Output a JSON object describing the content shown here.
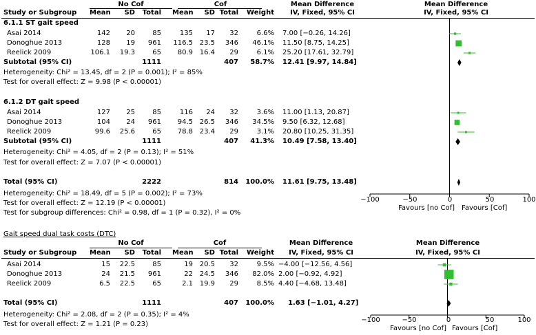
{
  "top": {
    "group_no_cof": "No Cof",
    "group_cof": "Cof",
    "headers": [
      "Study or Subgroup",
      "Mean",
      "SD",
      "Total",
      "Mean",
      "SD",
      "Total",
      "Weight",
      "Mean Difference",
      "Mean Difference"
    ],
    "sub_headers": [
      "IV, Fixed, 95% CI",
      "IV, Fixed, 95% CI"
    ],
    "subgroups": [
      {
        "title": "6.1.1 ST gait speed",
        "rows": [
          {
            "study": "Asai 2014",
            "m1": "142",
            "sd1": "20",
            "n1": "85",
            "m2": "135",
            "sd2": "17",
            "n2": "32",
            "w": "6.6%",
            "ci": "7.00 [−0.26, 14.26]"
          },
          {
            "study": "Donoghue 2013",
            "m1": "128",
            "sd1": "19",
            "n1": "961",
            "m2": "116.5",
            "sd2": "23.5",
            "n2": "346",
            "w": "46.1%",
            "ci": "11.50 [8.75, 14.25]"
          },
          {
            "study": "Reelick 2009",
            "m1": "106.1",
            "sd1": "19.3",
            "n1": "65",
            "m2": "80.9",
            "sd2": "16.4",
            "n2": "29",
            "w": "6.1%",
            "ci": "25.20 [17.61, 32.79]"
          }
        ],
        "subtotal": {
          "label": "Subtotal (95% CI)",
          "n1": "1111",
          "n2": "407",
          "w": "58.7%",
          "ci": "12.41 [9.97, 14.84]"
        },
        "het": "Heterogeneity: Chi² = 13.45, df = 2 (P = 0.001); I² = 85%",
        "effect": "Test for overall effect: Z = 9.98 (P < 0.00001)"
      },
      {
        "title": "6.1.2 DT gait speed",
        "rows": [
          {
            "study": "Asai 2014",
            "m1": "127",
            "sd1": "25",
            "n1": "85",
            "m2": "116",
            "sd2": "24",
            "n2": "32",
            "w": "3.6%",
            "ci": "11.00 [1.13, 20.87]"
          },
          {
            "study": "Donoghue 2013",
            "m1": "104",
            "sd1": "24",
            "n1": "961",
            "m2": "94.5",
            "sd2": "26.5",
            "n2": "346",
            "w": "34.5%",
            "ci": "9.50 [6.32, 12.68]"
          },
          {
            "study": "Reelick 2009",
            "m1": "99.6",
            "sd1": "25.6",
            "n1": "65",
            "m2": "78.8",
            "sd2": "23.4",
            "n2": "29",
            "w": "3.1%",
            "ci": "20.80 [10.25, 31.35]"
          }
        ],
        "subtotal": {
          "label": "Subtotal (95% CI)",
          "n1": "1111",
          "n2": "407",
          "w": "41.3%",
          "ci": "10.49 [7.58, 13.40]"
        },
        "het": "Heterogeneity: Chi² = 4.05, df = 2 (P = 0.13); I² = 51%",
        "effect": "Test for overall effect: Z = 7.07 (P < 0.00001)"
      }
    ],
    "total": {
      "label": "Total (95% CI)",
      "n1": "2222",
      "n2": "814",
      "w": "100.0%",
      "ci": "11.61 [9.75, 13.48]"
    },
    "total_het": "Heterogeneity: Chi² = 18.49, df = 5 (P = 0.002); I² = 73%",
    "total_effect": "Test for overall effect: Z = 12.19 (P < 0.00001)",
    "subgroup_diff": "Test for subgroup differences: Chi² = 0.98, df = 1 (P = 0.32), I² = 0%",
    "axis": {
      "ticks": [
        "−100",
        "−50",
        "0",
        "50",
        "100"
      ],
      "left_label": "Favours [no Cof]",
      "right_label": "Favours [Cof]"
    }
  },
  "bottom": {
    "title": "Gait speed dual task costs (DTC)",
    "group_no_cof": "No Cof",
    "group_cof": "Cof",
    "headers": [
      "Study or Subgroup",
      "Mean",
      "SD",
      "Total",
      "Mean",
      "SD",
      "Total",
      "Weight",
      "Mean Difference",
      "Mean Difference"
    ],
    "sub_headers": [
      "IV, Fixed, 95% CI",
      "IV, Fixed, 95% CI"
    ],
    "rows": [
      {
        "study": "Asai 2014",
        "m1": "15",
        "sd1": "22.5",
        "n1": "85",
        "m2": "19",
        "sd2": "20.5",
        "n2": "32",
        "w": "9.5%",
        "ci": "−4.00 [−12.56, 4.56]"
      },
      {
        "study": "Donoghue 2013",
        "m1": "24",
        "sd1": "21.5",
        "n1": "961",
        "m2": "22",
        "sd2": "24.5",
        "n2": "346",
        "w": "82.0%",
        "ci": "2.00 [−0.92, 4.92]"
      },
      {
        "study": "Reelick 2009",
        "m1": "6.5",
        "sd1": "22.5",
        "n1": "65",
        "m2": "2.1",
        "sd2": "19.9",
        "n2": "29",
        "w": "8.5%",
        "ci": "4.40 [−4.68, 13.48]"
      }
    ],
    "total": {
      "label": "Total (95% CI)",
      "n1": "1111",
      "n2": "407",
      "w": "100.0%",
      "ci": "1.63 [−1.01, 4.27]"
    },
    "het": "Heterogeneity: Chi² = 2.08, df = 2 (P = 0.35); I² = 4%",
    "effect": "Test for overall effect: Z = 1.21 (P = 0.23)",
    "axis": {
      "ticks": [
        "−100",
        "−50",
        "0",
        "50",
        "100"
      ],
      "left_label": "Favours [no Cof]",
      "right_label": "Favours [Cof]"
    }
  },
  "chart_data": [
    {
      "type": "forest",
      "xlim": [
        -100,
        100
      ],
      "studies": [
        {
          "label": "Asai 2014 (ST)",
          "est": 7.0,
          "lo": -0.26,
          "hi": 14.26,
          "weight": 6.6
        },
        {
          "label": "Donoghue 2013 (ST)",
          "est": 11.5,
          "lo": 8.75,
          "hi": 14.25,
          "weight": 46.1
        },
        {
          "label": "Reelick 2009 (ST)",
          "est": 25.2,
          "lo": 17.61,
          "hi": 32.79,
          "weight": 6.1
        },
        {
          "label": "Asai 2014 (DT)",
          "est": 11.0,
          "lo": 1.13,
          "hi": 20.87,
          "weight": 3.6
        },
        {
          "label": "Donoghue 2013 (DT)",
          "est": 9.5,
          "lo": 6.32,
          "hi": 12.68,
          "weight": 34.5
        },
        {
          "label": "Reelick 2009 (DT)",
          "est": 20.8,
          "lo": 10.25,
          "hi": 31.35,
          "weight": 3.1
        }
      ],
      "pooled": [
        {
          "label": "Subtotal ST",
          "est": 12.41,
          "lo": 9.97,
          "hi": 14.84
        },
        {
          "label": "Subtotal DT",
          "est": 10.49,
          "lo": 7.58,
          "hi": 13.4
        },
        {
          "label": "Total",
          "est": 11.61,
          "lo": 9.75,
          "hi": 13.48
        }
      ]
    },
    {
      "type": "forest",
      "xlim": [
        -100,
        100
      ],
      "studies": [
        {
          "label": "Asai 2014",
          "est": -4.0,
          "lo": -12.56,
          "hi": 4.56,
          "weight": 9.5
        },
        {
          "label": "Donoghue 2013",
          "est": 2.0,
          "lo": -0.92,
          "hi": 4.92,
          "weight": 82.0
        },
        {
          "label": "Reelick 2009",
          "est": 4.4,
          "lo": -4.68,
          "hi": 13.48,
          "weight": 8.5
        }
      ],
      "pooled": [
        {
          "label": "Total",
          "est": 1.63,
          "lo": -1.01,
          "hi": 4.27
        }
      ]
    }
  ]
}
